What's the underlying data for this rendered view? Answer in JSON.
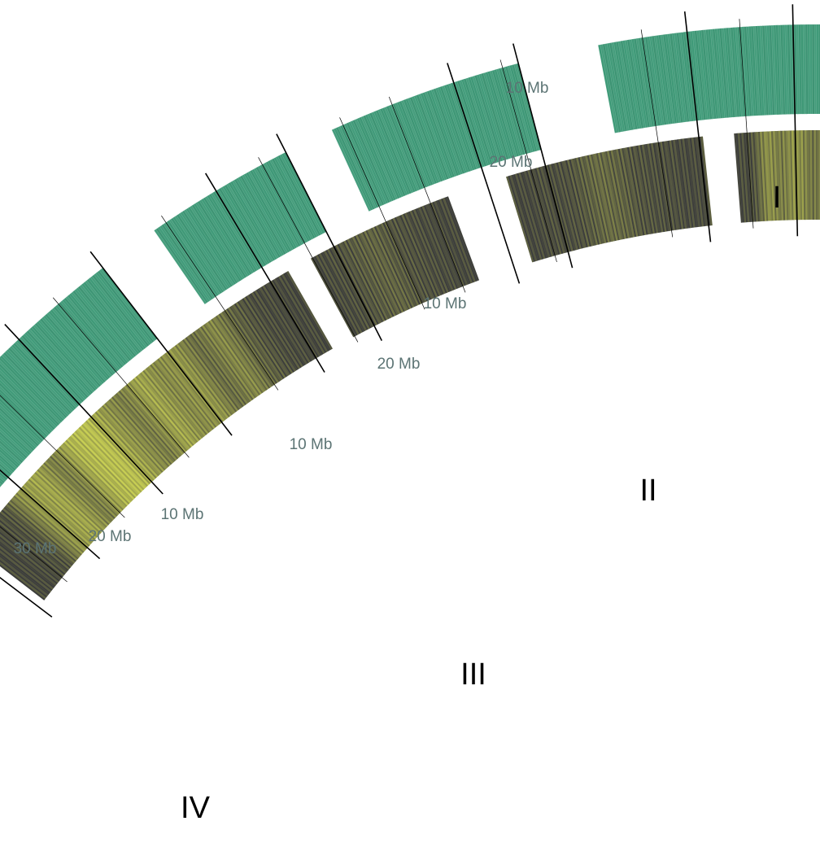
{
  "tick_label_color": "#5c7474",
  "track_colors": {
    "outer": "#3f9a78",
    "inner_dark": "#3c3d3a",
    "inner_hot": "#c8cf52",
    "gap_mark": "#6f6f6f"
  },
  "chromosomes": [
    {
      "name": "I",
      "tick_labels": [
        "10 Mb",
        "20 Mb"
      ],
      "inner_profile": [
        0.05,
        0.1,
        0.55,
        0.4,
        0.6,
        0.35,
        0.45,
        0.15,
        0.2,
        0.1,
        0.3,
        0.1,
        0.55,
        0.4,
        0.2,
        0.15,
        0.1,
        0.05
      ]
    },
    {
      "name": "II",
      "tick_labels": [
        "10 Mb",
        "20 Mb"
      ],
      "inner_profile": [
        0.05,
        0.05,
        0.1,
        0.1,
        0.2,
        0.3,
        0.25,
        0.15,
        0.1,
        0.1,
        0.05,
        0.05
      ]
    },
    {
      "name": "III",
      "tick_labels": [
        "10 Mb"
      ],
      "inner_profile": [
        0.05,
        0.1,
        0.2,
        0.25,
        0.15,
        0.1,
        0.05,
        0.05
      ]
    },
    {
      "name": "IV",
      "tick_labels": [
        "30 Mb",
        "20 Mb",
        "10 Mb"
      ],
      "inner_profile": [
        0.05,
        0.05,
        0.15,
        0.6,
        0.7,
        0.4,
        0.8,
        0.9,
        0.6,
        0.4,
        0.7,
        0.5,
        0.6,
        0.3,
        0.5,
        0.25,
        0.1,
        0.05,
        0.05
      ]
    }
  ]
}
